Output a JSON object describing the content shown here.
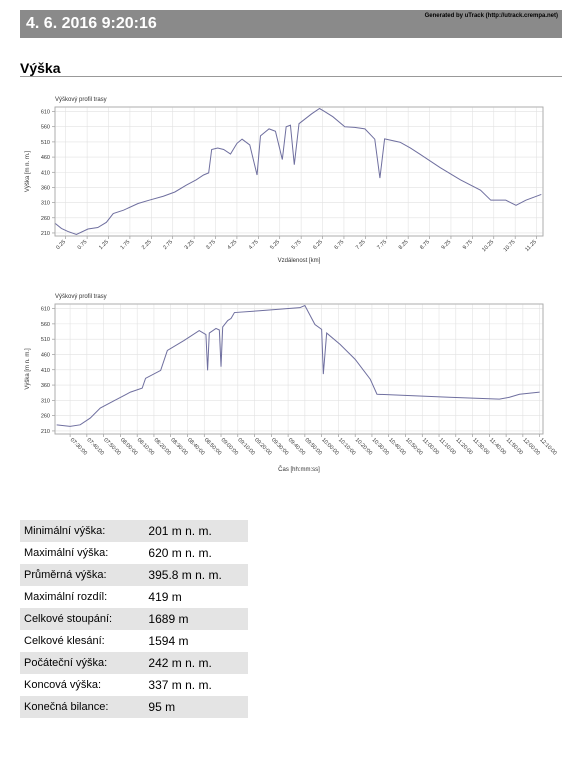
{
  "header": {
    "title": "4. 6. 2016 9:20:16",
    "generated": "Generated by uTrack (http://utrack.crempa.net)"
  },
  "section": {
    "title": "Výška"
  },
  "chart_data": [
    {
      "type": "line",
      "title": "Výškový profil trasy",
      "xlabel": "Vzdálenost [km]",
      "ylabel": "Výška [m n. m.]",
      "x": [
        0,
        0.15,
        0.3,
        0.5,
        0.77,
        1.0,
        1.2,
        1.36,
        1.6,
        1.94,
        2.2,
        2.53,
        2.8,
        3.07,
        3.3,
        3.47,
        3.59,
        3.66,
        3.8,
        3.94,
        4.1,
        4.25,
        4.37,
        4.55,
        4.72,
        4.8,
        5.0,
        5.15,
        5.31,
        5.4,
        5.5,
        5.59,
        5.7,
        6.0,
        6.18,
        6.3,
        6.49,
        6.77,
        7.0,
        7.24,
        7.47,
        7.59,
        7.7,
        8.06,
        8.3,
        8.53,
        9.0,
        9.47,
        9.94,
        10.18,
        10.53,
        10.77,
        11.0,
        11.36
      ],
      "values": [
        242,
        225,
        215,
        205,
        223,
        228,
        245,
        274,
        285,
        307,
        318,
        331,
        345,
        368,
        385,
        401,
        408,
        485,
        490,
        485,
        470,
        505,
        519,
        500,
        401,
        530,
        553,
        545,
        452,
        560,
        565,
        435,
        570,
        603,
        620,
        610,
        593,
        560,
        558,
        553,
        519,
        391,
        520,
        509,
        490,
        469,
        425,
        385,
        351,
        318,
        318,
        301,
        318,
        337
      ],
      "color": "#6f6f9f",
      "xlim": [
        0,
        11.4
      ],
      "ylim": [
        200,
        625
      ],
      "xticks": [
        0.25,
        0.75,
        1.25,
        1.75,
        2.25,
        2.75,
        3.25,
        3.75,
        4.25,
        4.75,
        5.25,
        5.75,
        6.25,
        6.75,
        7.25,
        7.75,
        8.25,
        8.75,
        9.25,
        9.75,
        10.25,
        10.75,
        11.25
      ],
      "yticks": [
        210,
        260,
        310,
        360,
        410,
        460,
        510,
        560,
        610
      ],
      "grid": true
    },
    {
      "type": "line",
      "title": "Výškový profil trasy",
      "xlabel": "Čas [hh:mm:ss]",
      "ylabel": "Výška [m n. m.]",
      "x": [
        "07:22:00",
        "07:30:00",
        "07:36:00",
        "07:42:00",
        "07:48:00",
        "07:57:00",
        "08:06:00",
        "08:13:00",
        "08:15:00",
        "08:24:00",
        "08:28:00",
        "08:38:00",
        "08:47:00",
        "08:51:00",
        "08:52:00",
        "08:53:00",
        "08:57:00",
        "08:59:00",
        "09:00:00",
        "09:01:00",
        "09:04:00",
        "09:06:00",
        "09:08:00",
        "09:23:00",
        "09:47:00",
        "09:50:00",
        "09:56:00",
        "10:00:00",
        "10:01:00",
        "10:03:00",
        "10:11:00",
        "10:20:00",
        "10:29:00",
        "10:33:00",
        "11:16:00",
        "11:46:00",
        "11:52:00",
        "11:58:00",
        "12:10:00"
      ],
      "values": [
        230,
        225,
        230,
        252,
        285,
        311,
        337,
        350,
        382,
        408,
        473,
        506,
        538,
        525,
        408,
        530,
        545,
        540,
        420,
        550,
        571,
        578,
        597,
        603,
        613,
        620,
        558,
        542,
        396,
        530,
        493,
        444,
        379,
        330,
        320,
        314,
        320,
        330,
        337
      ],
      "color": "#6f6f9f",
      "xlim": [
        "07:21:00",
        "12:12:00"
      ],
      "ylim": [
        200,
        625
      ],
      "xticks": [
        "07:30:00",
        "07:40:00",
        "07:50:00",
        "08:00:00",
        "08:10:00",
        "08:20:00",
        "08:30:00",
        "08:40:00",
        "08:50:00",
        "09:00:00",
        "09:10:00",
        "09:20:00",
        "09:30:00",
        "09:40:00",
        "09:50:00",
        "10:00:00",
        "10:10:00",
        "10:20:00",
        "10:30:00",
        "10:40:00",
        "10:50:00",
        "11:00:00",
        "11:10:00",
        "11:20:00",
        "11:30:00",
        "11:40:00",
        "11:50:00",
        "12:00:00",
        "12:10:00"
      ],
      "yticks": [
        210,
        260,
        310,
        360,
        410,
        460,
        510,
        560,
        610
      ],
      "grid": true
    }
  ],
  "table": {
    "rows": [
      [
        "Minimální výška:",
        "201 m n. m."
      ],
      [
        "Maximální výška:",
        "620 m n. m."
      ],
      [
        "Průměrná výška:",
        "395.8 m n. m."
      ],
      [
        "Maximální rozdíl:",
        "419 m"
      ],
      [
        "Celkové stoupání:",
        "1689 m"
      ],
      [
        "Celkové klesání:",
        "1594 m"
      ],
      [
        "Počáteční výška:",
        "242 m n. m."
      ],
      [
        "Koncová výška:",
        "337 m n. m."
      ],
      [
        "Konečná bilance:",
        "95 m"
      ]
    ]
  }
}
